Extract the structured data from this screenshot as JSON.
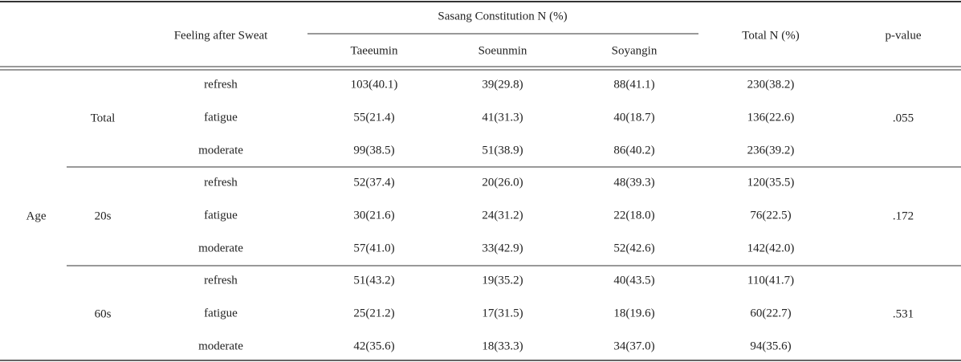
{
  "header": {
    "feeling": "Feeling after Sweat",
    "group": "Sasang Constitution N (%)",
    "columns": [
      "Taeeumin",
      "Soeunmin",
      "Soyangin"
    ],
    "total": "Total N (%)",
    "p": "p-value"
  },
  "age_label": "Age",
  "groups": [
    {
      "label": "Total",
      "p": ".055",
      "rows": [
        {
          "feeling": "refresh",
          "cells": [
            "103(40.1)",
            "39(29.8)",
            "88(41.1)",
            "230(38.2)"
          ]
        },
        {
          "feeling": "fatigue",
          "cells": [
            "55(21.4)",
            "41(31.3)",
            "40(18.7)",
            "136(22.6)"
          ]
        },
        {
          "feeling": "moderate",
          "cells": [
            "99(38.5)",
            "51(38.9)",
            "86(40.2)",
            "236(39.2)"
          ]
        }
      ]
    },
    {
      "label": "20s",
      "p": ".172",
      "rows": [
        {
          "feeling": "refresh",
          "cells": [
            "52(37.4)",
            "20(26.0)",
            "48(39.3)",
            "120(35.5)"
          ]
        },
        {
          "feeling": "fatigue",
          "cells": [
            "30(21.6)",
            "24(31.2)",
            "22(18.0)",
            "76(22.5)"
          ]
        },
        {
          "feeling": "moderate",
          "cells": [
            "57(41.0)",
            "33(42.9)",
            "52(42.6)",
            "142(42.0)"
          ]
        }
      ]
    },
    {
      "label": "60s",
      "p": ".531",
      "rows": [
        {
          "feeling": "refresh",
          "cells": [
            "51(43.2)",
            "19(35.2)",
            "40(43.5)",
            "110(41.7)"
          ]
        },
        {
          "feeling": "fatigue",
          "cells": [
            "25(21.2)",
            "17(31.5)",
            "18(19.6)",
            "60(22.7)"
          ]
        },
        {
          "feeling": "moderate",
          "cells": [
            "42(35.6)",
            "18(33.3)",
            "34(37.0)",
            "94(35.6)"
          ]
        }
      ]
    }
  ]
}
